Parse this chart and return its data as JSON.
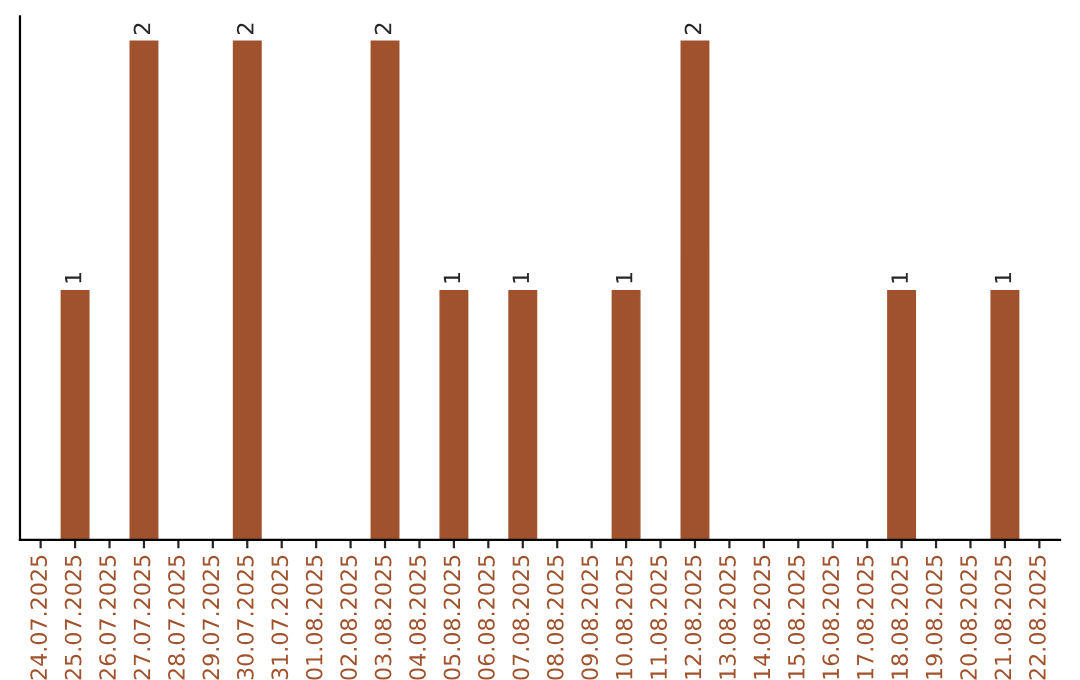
{
  "chart_data": {
    "type": "bar",
    "categories": [
      "24.07.2025",
      "25.07.2025",
      "26.07.2025",
      "27.07.2025",
      "28.07.2025",
      "29.07.2025",
      "30.07.2025",
      "31.07.2025",
      "01.08.2025",
      "02.08.2025",
      "03.08.2025",
      "04.08.2025",
      "05.08.2025",
      "06.08.2025",
      "07.08.2025",
      "08.08.2025",
      "09.08.2025",
      "10.08.2025",
      "11.08.2025",
      "12.08.2025",
      "13.08.2025",
      "14.08.2025",
      "15.08.2025",
      "16.08.2025",
      "17.08.2025",
      "18.08.2025",
      "19.08.2025",
      "20.08.2025",
      "21.08.2025",
      "22.08.2025"
    ],
    "values": [
      0,
      1,
      0,
      2,
      0,
      0,
      2,
      0,
      0,
      0,
      2,
      0,
      1,
      0,
      1,
      0,
      0,
      1,
      0,
      2,
      0,
      0,
      0,
      0,
      0,
      1,
      0,
      0,
      1,
      0
    ],
    "value_labels": [
      null,
      "1",
      null,
      "2",
      null,
      null,
      "2",
      null,
      null,
      null,
      "2",
      null,
      "1",
      null,
      "1",
      null,
      null,
      "1",
      null,
      "2",
      null,
      null,
      null,
      null,
      null,
      "1",
      null,
      null,
      "1",
      null
    ],
    "color": "#a0522d",
    "ylim": [
      0,
      2.1
    ],
    "tick_labels": "x",
    "grid": false,
    "legend": false
  }
}
